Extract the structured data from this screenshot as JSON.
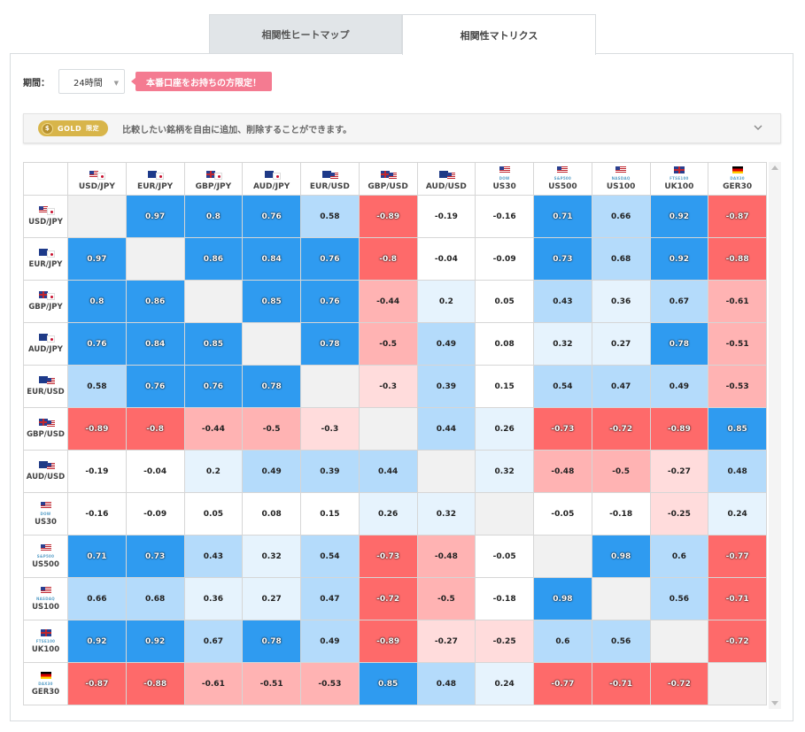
{
  "tabs": [
    {
      "label": "相関性ヒートマップ",
      "active": false
    },
    {
      "label": "相関性マトリクス",
      "active": true
    }
  ],
  "period": {
    "label": "期間：",
    "value": "24時間"
  },
  "promo_label": "本番口座をお持ちの方限定！",
  "gold_bar": {
    "badge": "GOLD",
    "limited": "限定",
    "text": "比較したい銘柄を自由に追加、削除することができます。"
  },
  "colors": {
    "strong_positive": "#2f9bf0",
    "mid_positive": "#b4dbfb",
    "weak_positive": "#e6f3fd",
    "weak_negative": "#ffdcdc",
    "mid_negative": "#ffb3b3",
    "strong_negative": "#fe6a6a",
    "promo": "#f47b91",
    "gold": "#d8b54a"
  },
  "symbols": [
    {
      "label": "USD/JPY",
      "flags": [
        "us",
        "jp"
      ]
    },
    {
      "label": "EUR/JPY",
      "flags": [
        "eu",
        "jp"
      ]
    },
    {
      "label": "GBP/JPY",
      "flags": [
        "uk",
        "jp"
      ]
    },
    {
      "label": "AUD/JPY",
      "flags": [
        "au",
        "jp"
      ]
    },
    {
      "label": "EUR/USD",
      "flags": [
        "eu",
        "us"
      ]
    },
    {
      "label": "GBP/USD",
      "flags": [
        "uk",
        "us"
      ]
    },
    {
      "label": "AUD/USD",
      "flags": [
        "au",
        "us"
      ]
    },
    {
      "label": "US30",
      "flags": [
        "us"
      ],
      "sub": "DOW"
    },
    {
      "label": "US500",
      "flags": [
        "us"
      ],
      "sub": "S&P500"
    },
    {
      "label": "US100",
      "flags": [
        "us"
      ],
      "sub": "NASDAQ"
    },
    {
      "label": "UK100",
      "flags": [
        "uk"
      ],
      "sub": "FTSE100"
    },
    {
      "label": "GER30",
      "flags": [
        "de"
      ],
      "sub": "DAX30"
    }
  ],
  "matrix": [
    [
      null,
      "0.97",
      "0.8",
      "0.76",
      "0.58",
      "-0.89",
      "-0.19",
      "-0.16",
      "0.71",
      "0.66",
      "0.92",
      "-0.87"
    ],
    [
      "0.97",
      null,
      "0.86",
      "0.84",
      "0.76",
      "-0.8",
      "-0.04",
      "-0.09",
      "0.73",
      "0.68",
      "0.92",
      "-0.88"
    ],
    [
      "0.8",
      "0.86",
      null,
      "0.85",
      "0.76",
      "-0.44",
      "0.2",
      "0.05",
      "0.43",
      "0.36",
      "0.67",
      "-0.61"
    ],
    [
      "0.76",
      "0.84",
      "0.85",
      null,
      "0.78",
      "-0.5",
      "0.49",
      "0.08",
      "0.32",
      "0.27",
      "0.78",
      "-0.51"
    ],
    [
      "0.58",
      "0.76",
      "0.76",
      "0.78",
      null,
      "-0.3",
      "0.39",
      "0.15",
      "0.54",
      "0.47",
      "0.49",
      "-0.53"
    ],
    [
      "-0.89",
      "-0.8",
      "-0.44",
      "-0.5",
      "-0.3",
      null,
      "0.44",
      "0.26",
      "-0.73",
      "-0.72",
      "-0.89",
      "0.85"
    ],
    [
      "-0.19",
      "-0.04",
      "0.2",
      "0.49",
      "0.39",
      "0.44",
      null,
      "0.32",
      "-0.48",
      "-0.5",
      "-0.27",
      "0.48"
    ],
    [
      "-0.16",
      "-0.09",
      "0.05",
      "0.08",
      "0.15",
      "0.26",
      "0.32",
      null,
      "-0.05",
      "-0.18",
      "-0.25",
      "0.24"
    ],
    [
      "0.71",
      "0.73",
      "0.43",
      "0.32",
      "0.54",
      "-0.73",
      "-0.48",
      "-0.05",
      null,
      "0.98",
      "0.6",
      "-0.77"
    ],
    [
      "0.66",
      "0.68",
      "0.36",
      "0.27",
      "0.47",
      "-0.72",
      "-0.5",
      "-0.18",
      "0.98",
      null,
      "0.56",
      "-0.71"
    ],
    [
      "0.92",
      "0.92",
      "0.67",
      "0.78",
      "0.49",
      "-0.89",
      "-0.27",
      "-0.25",
      "0.6",
      "0.56",
      null,
      "-0.72"
    ],
    [
      "-0.87",
      "-0.88",
      "-0.61",
      "-0.51",
      "-0.53",
      "0.85",
      "0.48",
      "0.24",
      "-0.77",
      "-0.71",
      "-0.72",
      null
    ]
  ]
}
